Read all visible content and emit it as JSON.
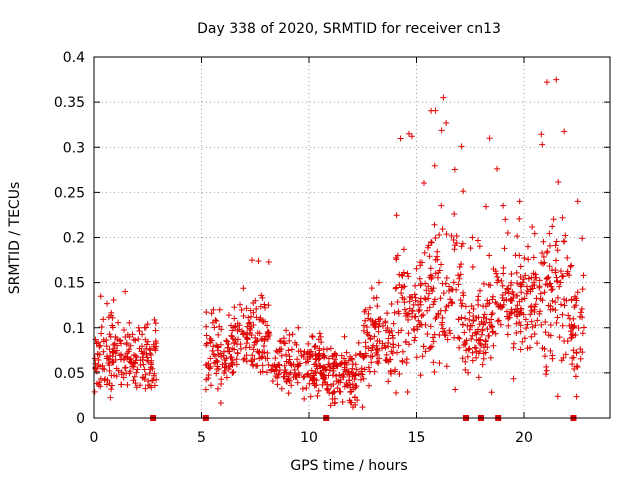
{
  "chart_data": {
    "type": "scatter",
    "title": "Day 338 of 2020, SRMTID for receiver cn13",
    "xlabel": "GPS time / hours",
    "ylabel": "SRMTID / TECUs",
    "xlim": [
      0,
      24
    ],
    "ylim": [
      0,
      0.4
    ],
    "xticks": [
      "0",
      "5",
      "10",
      "15",
      "20"
    ],
    "xtick_values": [
      0,
      5,
      10,
      15,
      20
    ],
    "yticks": [
      "0",
      "0.05",
      "0.1",
      "0.15",
      "0.2",
      "0.25",
      "0.3",
      "0.35",
      "0.4"
    ],
    "ytick_values": [
      0,
      0.05,
      0.1,
      0.15,
      0.2,
      0.25,
      0.3,
      0.35,
      0.4
    ],
    "grid": true,
    "marker": "plus",
    "color": "#e00000",
    "gap_markers_x": [
      2.75,
      5.2,
      10.8,
      17.3,
      18.0,
      18.8,
      22.3
    ],
    "activity_profile": [
      {
        "t0": 0.0,
        "t1": 2.9,
        "median": 0.065,
        "spread": 0.035,
        "max": 0.14
      },
      {
        "t0": 5.2,
        "t1": 6.5,
        "median": 0.07,
        "spread": 0.03,
        "max": 0.12
      },
      {
        "t0": 6.5,
        "t1": 8.2,
        "median": 0.09,
        "spread": 0.035,
        "max": 0.175
      },
      {
        "t0": 8.2,
        "t1": 10.8,
        "median": 0.055,
        "spread": 0.025,
        "max": 0.1
      },
      {
        "t0": 10.8,
        "t1": 12.5,
        "median": 0.045,
        "spread": 0.025,
        "max": 0.09
      },
      {
        "t0": 12.5,
        "t1": 14.0,
        "median": 0.085,
        "spread": 0.035,
        "max": 0.15
      },
      {
        "t0": 14.0,
        "t1": 15.3,
        "median": 0.12,
        "spread": 0.06,
        "max": 0.315
      },
      {
        "t0": 15.3,
        "t1": 17.2,
        "median": 0.14,
        "spread": 0.07,
        "max": 0.355
      },
      {
        "t0": 17.2,
        "t1": 18.0,
        "median": 0.09,
        "spread": 0.04,
        "max": 0.2
      },
      {
        "t0": 18.0,
        "t1": 18.8,
        "median": 0.12,
        "spread": 0.05,
        "max": 0.31
      },
      {
        "t0": 18.8,
        "t1": 20.8,
        "median": 0.13,
        "spread": 0.05,
        "max": 0.24
      },
      {
        "t0": 20.8,
        "t1": 22.2,
        "median": 0.13,
        "spread": 0.07,
        "max": 0.375
      },
      {
        "t0": 22.2,
        "t1": 22.8,
        "median": 0.1,
        "spread": 0.04,
        "max": 0.24
      }
    ]
  }
}
